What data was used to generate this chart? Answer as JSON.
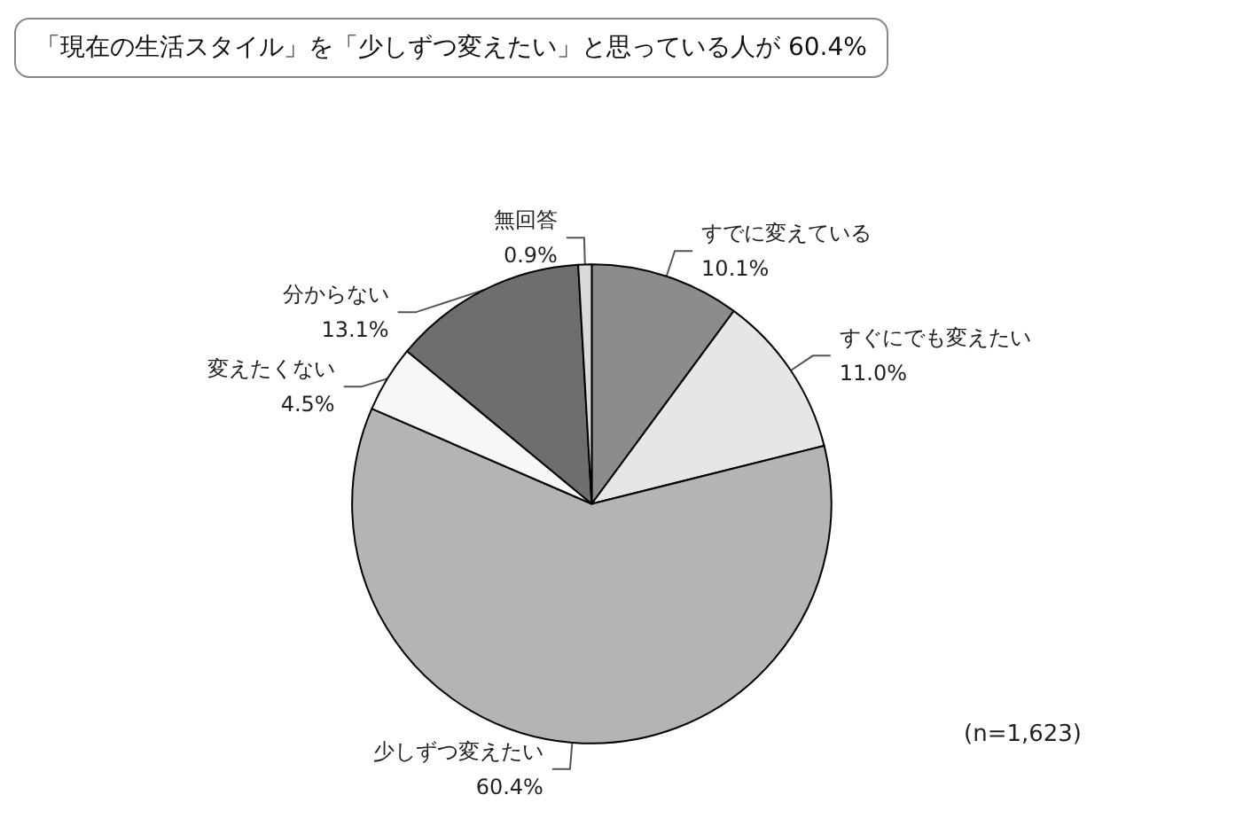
{
  "chart_data": {
    "type": "pie",
    "title": "「現在の生活スタイル」を「少しずつ変えたい」と思っている人が 60.4%",
    "categories": [
      "すでに変えている",
      "すぐにでも変えたい",
      "少しずつ変えたい",
      "変えたくない",
      "分からない",
      "無回答"
    ],
    "values": [
      10.1,
      11.0,
      60.4,
      4.5,
      13.1,
      0.9
    ],
    "value_labels": [
      "10.1%",
      "11.0%",
      "60.4%",
      "4.5%",
      "13.1%",
      "0.9%"
    ],
    "colors": [
      "#8c8c8c",
      "#e6e6e6",
      "#b4b4b4",
      "#f7f7f7",
      "#6e6e6e",
      "#d9d9d9"
    ],
    "annotations": [
      "(n=1,623)"
    ],
    "legend": false
  }
}
